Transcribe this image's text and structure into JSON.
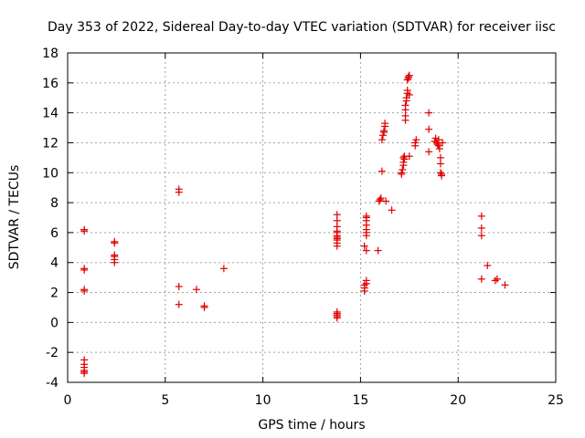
{
  "chart_data": {
    "type": "scatter",
    "title": "Day 353 of 2022, Sidereal Day-to-day VTEC variation (SDTVAR) for receiver iisc",
    "xlabel": "GPS time / hours",
    "ylabel": "SDTVAR / TECUs",
    "xlim": [
      0,
      25
    ],
    "ylim": [
      -4,
      18
    ],
    "xticks": [
      "0",
      "5",
      "10",
      "15",
      "20",
      "25"
    ],
    "yticks": [
      "-4",
      "-2",
      "0",
      "2",
      "4",
      "6",
      "8",
      "10",
      "12",
      "14",
      "16",
      "18"
    ],
    "grid": true,
    "marker": "+",
    "color": "#e00000",
    "series": [
      {
        "name": "SDTVAR",
        "x": [
          0.85,
          0.85,
          0.85,
          0.85,
          0.85,
          0.85,
          0.85,
          0.85,
          0.85,
          0.85,
          0.85,
          0.85,
          2.4,
          2.4,
          2.4,
          2.4,
          2.4,
          2.4,
          5.7,
          5.7,
          5.7,
          5.7,
          6.6,
          7.0,
          7.0,
          8.0,
          13.8,
          13.8,
          13.8,
          13.8,
          13.8,
          13.8,
          13.8,
          13.8,
          13.8,
          13.8,
          13.8,
          13.8,
          13.8,
          13.8,
          13.8,
          13.8,
          15.2,
          15.2,
          15.2,
          15.2,
          15.3,
          15.3,
          15.3,
          15.3,
          15.3,
          15.3,
          15.3,
          15.3,
          15.3,
          15.3,
          15.9,
          15.95,
          16.0,
          16.05,
          16.1,
          16.1,
          16.15,
          16.2,
          16.2,
          16.25,
          16.25,
          16.3,
          16.6,
          17.1,
          17.1,
          17.15,
          17.2,
          17.2,
          17.2,
          17.25,
          17.25,
          17.3,
          17.3,
          17.3,
          17.3,
          17.35,
          17.35,
          17.4,
          17.4,
          17.4,
          17.45,
          17.45,
          17.5,
          17.5,
          17.5,
          17.8,
          17.8,
          17.85,
          18.5,
          18.5,
          18.5,
          18.8,
          18.85,
          18.9,
          18.95,
          19.0,
          19.0,
          19.05,
          19.1,
          19.1,
          19.1,
          19.15,
          19.15,
          19.2,
          21.2,
          21.2,
          21.2,
          21.2,
          21.5,
          21.9,
          22.0,
          22.4
        ],
        "y": [
          6.1,
          6.2,
          3.5,
          3.6,
          2.1,
          2.2,
          -2.5,
          -2.8,
          -3.0,
          -3.2,
          -3.3,
          -3.4,
          5.4,
          5.3,
          4.5,
          4.4,
          4.2,
          4.0,
          8.9,
          8.7,
          2.4,
          1.2,
          2.2,
          1.0,
          1.1,
          3.6,
          7.2,
          6.8,
          6.4,
          6.1,
          6.0,
          5.8,
          5.7,
          5.6,
          5.5,
          5.3,
          5.1,
          0.7,
          0.6,
          0.5,
          0.4,
          0.3,
          2.1,
          2.3,
          2.5,
          5.1,
          4.8,
          5.8,
          6.0,
          6.2,
          6.5,
          6.8,
          7.1,
          7.0,
          2.6,
          2.8,
          4.8,
          8.1,
          8.2,
          8.3,
          12.2,
          10.1,
          12.5,
          12.7,
          12.8,
          13.1,
          13.3,
          8.1,
          7.5,
          9.9,
          10.0,
          10.2,
          10.5,
          10.7,
          11.0,
          11.1,
          10.9,
          13.5,
          13.8,
          14.2,
          14.5,
          14.8,
          15.0,
          15.3,
          15.5,
          16.2,
          16.3,
          16.4,
          16.5,
          15.2,
          11.1,
          11.8,
          12.0,
          12.2,
          14.0,
          12.9,
          11.4,
          12.1,
          12.3,
          12.0,
          11.9,
          12.2,
          11.8,
          11.6,
          11.0,
          10.6,
          10.0,
          9.9,
          9.8,
          12.0,
          7.1,
          6.3,
          5.8,
          2.9,
          3.8,
          2.8,
          2.9,
          2.5
        ]
      }
    ]
  }
}
